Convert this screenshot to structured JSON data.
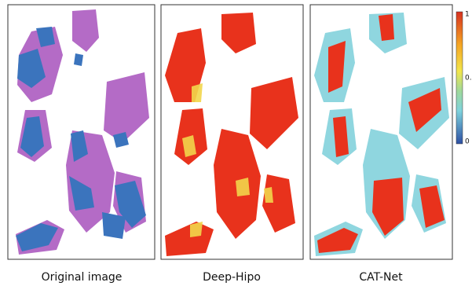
{
  "panels": [
    {
      "caption": "Original image"
    },
    {
      "caption": "Deep-Hipo"
    },
    {
      "caption": "CAT-Net"
    }
  ],
  "colorbar": {
    "labels": [
      "1",
      "0.",
      "0"
    ]
  }
}
